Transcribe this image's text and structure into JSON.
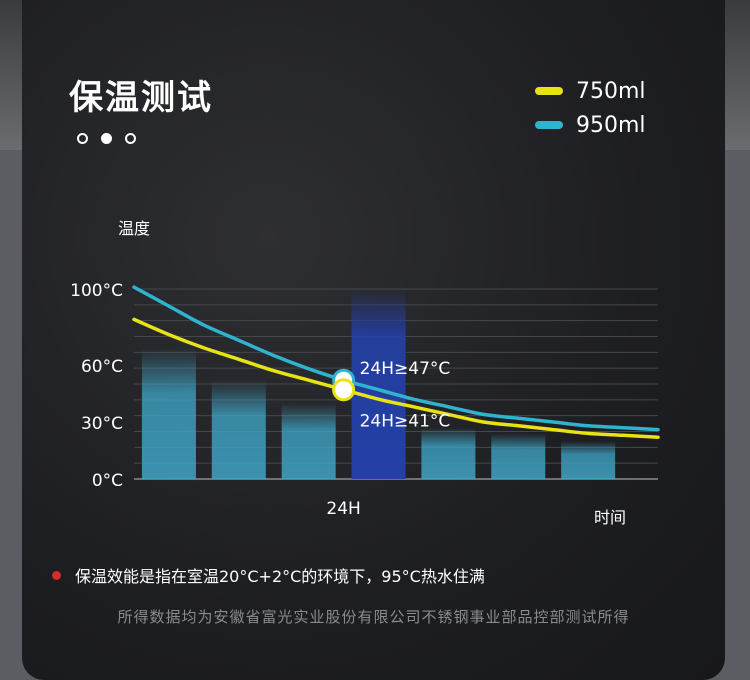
{
  "title": "保温测试",
  "pagination": {
    "count": 3,
    "active": 1
  },
  "legend": [
    {
      "label": "750ml",
      "color": "#e8e314"
    },
    {
      "label": "950ml",
      "color": "#2fb4cf"
    }
  ],
  "chart_data": {
    "type": "line",
    "ylabel": "温度",
    "xlabel": "时间",
    "y_ticks": [
      {
        "label": "100°C",
        "value": 100
      },
      {
        "label": "60°C",
        "value": 60
      },
      {
        "label": "30°C",
        "value": 30
      },
      {
        "label": "0°C",
        "value": 0
      }
    ],
    "x_ticks": [
      {
        "label": "24H",
        "value": 24
      }
    ],
    "xlim": [
      0,
      60
    ],
    "ylim": [
      0,
      100
    ],
    "bars": {
      "x": [
        4,
        12,
        20,
        28,
        36,
        44,
        52
      ],
      "values": [
        69,
        52,
        40,
        100,
        27,
        24,
        20
      ],
      "color": "#3fa6c8",
      "highlight_index": 3,
      "highlight_color": "#2440a8"
    },
    "series": [
      {
        "name": "750ml",
        "color": "#e8e314",
        "x": [
          0,
          4,
          8,
          12,
          16,
          20,
          24,
          28,
          32,
          36,
          40,
          44,
          48,
          52,
          56,
          60
        ],
        "y": [
          84,
          76,
          69,
          63,
          57,
          52,
          47,
          42,
          38,
          34,
          30,
          28,
          26,
          24,
          23,
          22
        ]
      },
      {
        "name": "950ml",
        "color": "#2fb4cf",
        "x": [
          0,
          4,
          8,
          12,
          16,
          20,
          24,
          28,
          32,
          36,
          40,
          44,
          48,
          52,
          56,
          60
        ],
        "y": [
          101,
          91,
          81,
          73,
          65,
          58,
          52,
          47,
          42,
          38,
          34,
          32,
          30,
          28,
          27,
          26
        ]
      }
    ],
    "annotations": [
      {
        "label": "24H≥47°C",
        "x": 24,
        "y": 52,
        "series": "950ml"
      },
      {
        "label": "24H≥41°C",
        "x": 24,
        "y": 47,
        "series": "750ml"
      }
    ]
  },
  "note": "保温效能是指在室温20°C+2°C的环境下，95°C热水住满",
  "source": "所得数据均为安徽省富光实业股份有限公司不锈钢事业部品控部测试所得"
}
